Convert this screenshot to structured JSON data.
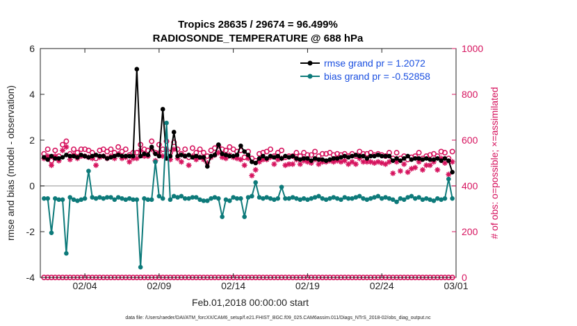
{
  "chart_data": {
    "type": "line",
    "title": "Tropics 28635 / 29674 = 96.499%",
    "subtitle": "RADIOSONDE_TEMPERATURE @ 688 hPa",
    "xlabel": "Feb.01,2018 00:00:00 start",
    "ylabel": "rmse and bias (model - observation)",
    "y2label": "# of obs: o=possible; ×=assimilated",
    "footnote": "data file: /Users/raeder/DAI/ATM_forcXX/CAM6_setup/f.e21.FHIST_BGC.f09_025.CAM6assim.011/Diags_NTrS_2018-02/obs_diag_output.nc",
    "xlim": [
      0,
      28
    ],
    "ylim": [
      -4,
      6
    ],
    "y2lim": [
      0,
      1000
    ],
    "x_ticks": [
      3,
      8,
      13,
      18,
      23,
      28
    ],
    "x_tick_labels": [
      "02/04",
      "02/09",
      "02/14",
      "02/19",
      "02/24",
      "03/01"
    ],
    "y_ticks": [
      -4,
      -2,
      0,
      2,
      4,
      6
    ],
    "y_tick_labels": [
      "-4",
      "-2",
      "0",
      "2",
      "4",
      "6"
    ],
    "y2_ticks": [
      0,
      200,
      400,
      600,
      800,
      1000
    ],
    "y2_tick_labels": [
      "0",
      "200",
      "400",
      "600",
      "800",
      "1000"
    ],
    "zero_line": 0,
    "legend_position": "top-right",
    "x": [
      0.25,
      0.5,
      0.75,
      1.0,
      1.25,
      1.5,
      1.75,
      2.0,
      2.25,
      2.5,
      2.75,
      3.0,
      3.25,
      3.5,
      3.75,
      4.0,
      4.25,
      4.5,
      4.75,
      5.0,
      5.25,
      5.5,
      5.75,
      6.0,
      6.25,
      6.5,
      6.75,
      7.0,
      7.25,
      7.5,
      7.75,
      8.0,
      8.25,
      8.5,
      8.75,
      9.0,
      9.25,
      9.5,
      9.75,
      10.0,
      10.25,
      10.5,
      10.75,
      11.0,
      11.25,
      11.5,
      11.75,
      12.0,
      12.25,
      12.5,
      12.75,
      13.0,
      13.25,
      13.5,
      13.75,
      14.0,
      14.25,
      14.5,
      14.75,
      15.0,
      15.25,
      15.5,
      15.75,
      16.0,
      16.25,
      16.5,
      16.75,
      17.0,
      17.25,
      17.5,
      17.75,
      18.0,
      18.25,
      18.5,
      18.75,
      19.0,
      19.25,
      19.5,
      19.75,
      20.0,
      20.25,
      20.5,
      20.75,
      21.0,
      21.25,
      21.5,
      21.75,
      22.0,
      22.25,
      22.5,
      22.75,
      23.0,
      23.25,
      23.5,
      23.75,
      24.0,
      24.25,
      24.5,
      24.75,
      25.0,
      25.25,
      25.5,
      25.75,
      26.0,
      26.25,
      26.5,
      26.75,
      27.0,
      27.25,
      27.5,
      27.75
    ],
    "series": [
      {
        "name": "rmse grand pr = 1.2072",
        "axis": "left",
        "color": "#000000",
        "values": [
          1.25,
          1.15,
          1.3,
          1.2,
          1.2,
          1.25,
          1.35,
          1.3,
          1.3,
          1.25,
          1.35,
          1.3,
          1.25,
          1.3,
          1.35,
          1.3,
          1.3,
          1.2,
          1.25,
          1.3,
          1.35,
          1.3,
          1.3,
          1.3,
          1.3,
          5.1,
          1.3,
          1.4,
          1.35,
          1.7,
          1.4,
          1.3,
          3.35,
          1.2,
          1.3,
          2.35,
          1.3,
          1.35,
          1.3,
          1.35,
          1.25,
          1.3,
          1.25,
          1.25,
          0.85,
          1.3,
          1.35,
          1.8,
          1.4,
          1.35,
          1.3,
          1.3,
          1.35,
          1.75,
          1.5,
          1.35,
          1.05,
          1.0,
          1.2,
          1.3,
          1.2,
          1.3,
          1.25,
          1.3,
          1.2,
          1.3,
          1.25,
          1.3,
          1.2,
          1.15,
          1.2,
          1.2,
          1.1,
          1.2,
          1.15,
          1.15,
          1.1,
          1.15,
          1.2,
          1.2,
          1.25,
          1.3,
          1.25,
          1.3,
          1.35,
          1.3,
          1.3,
          1.2,
          1.3,
          1.3,
          1.35,
          1.3,
          1.3,
          1.3,
          1.1,
          1.2,
          1.1,
          1.2,
          1.3,
          1.15,
          1.2,
          1.2,
          1.15,
          1.2,
          1.15,
          1.15,
          1.2,
          1.1,
          1.2,
          1.1,
          0.6
        ]
      },
      {
        "name": "bias grand pr = -0.52858",
        "axis": "left",
        "color": "#0d7a7a",
        "values": [
          -0.55,
          -0.55,
          -2.05,
          -0.55,
          -0.6,
          -0.6,
          -2.95,
          -0.5,
          -0.6,
          -0.65,
          -0.6,
          -0.55,
          0.65,
          -0.5,
          -0.55,
          -0.5,
          -0.55,
          -0.5,
          -0.5,
          -0.6,
          -0.5,
          -0.55,
          -0.6,
          -0.55,
          -0.6,
          -0.6,
          -3.55,
          -0.55,
          -0.6,
          -0.6,
          1.05,
          -0.45,
          -0.55,
          2.75,
          -0.6,
          -0.45,
          -0.5,
          -0.45,
          -0.55,
          -0.55,
          -0.5,
          -0.5,
          -0.6,
          -0.65,
          -0.65,
          -0.55,
          -0.5,
          -0.55,
          -1.35,
          -0.6,
          -0.65,
          -0.5,
          -0.55,
          -0.55,
          -1.35,
          -0.5,
          -0.45,
          0.15,
          -0.5,
          -0.55,
          -0.5,
          -0.55,
          -0.6,
          -0.55,
          -0.05,
          -0.55,
          -0.55,
          -0.5,
          -0.55,
          -0.6,
          -0.55,
          -0.6,
          -0.55,
          -0.5,
          -0.45,
          -0.55,
          -0.6,
          -0.55,
          -0.5,
          -0.55,
          -0.6,
          -0.5,
          -0.55,
          -0.55,
          -0.5,
          -0.45,
          -0.55,
          -0.6,
          -0.55,
          -0.5,
          -0.45,
          -0.55,
          -0.5,
          -0.55,
          -0.6,
          -0.7,
          -0.55,
          -0.6,
          -0.5,
          -0.45,
          -0.55,
          -0.5,
          -0.6,
          -0.55,
          -0.6,
          -0.65,
          -0.55,
          -0.6,
          -0.55,
          0.3,
          -0.55
        ]
      },
      {
        "name": "possible obs",
        "axis": "right",
        "color": "#d6135e",
        "marker": "o",
        "values": [
          540,
          560,
          510,
          555,
          530,
          580,
          595,
          540,
          560,
          545,
          560,
          560,
          555,
          545,
          520,
          555,
          560,
          550,
          560,
          545,
          570,
          550,
          560,
          535,
          545,
          545,
          580,
          560,
          555,
          595,
          545,
          580,
          560,
          595,
          545,
          590,
          560,
          540,
          560,
          525,
          565,
          545,
          560,
          545,
          530,
          555,
          565,
          575,
          560,
          555,
          570,
          560,
          550,
          555,
          525,
          550,
          520,
          510,
          540,
          545,
          550,
          560,
          530,
          545,
          555,
          525,
          530,
          530,
          545,
          530,
          545,
          535,
          535,
          550,
          530,
          540,
          540,
          545,
          535,
          540,
          535,
          540,
          530,
          540,
          530,
          550,
          540,
          540,
          545,
          535,
          540,
          535,
          530,
          545,
          520,
          545,
          520,
          530,
          515,
          525,
          530,
          545,
          520,
          530,
          535,
          540,
          530,
          550,
          545,
          520,
          550
        ]
      },
      {
        "name": "assimilated obs",
        "axis": "right",
        "color": "#d6135e",
        "marker": "x",
        "values": [
          520,
          530,
          490,
          530,
          510,
          555,
          570,
          515,
          535,
          520,
          530,
          530,
          525,
          520,
          490,
          525,
          530,
          520,
          530,
          520,
          540,
          520,
          525,
          505,
          520,
          520,
          555,
          530,
          530,
          560,
          510,
          545,
          530,
          560,
          515,
          560,
          520,
          505,
          530,
          490,
          530,
          515,
          525,
          515,
          500,
          525,
          535,
          545,
          525,
          520,
          535,
          525,
          520,
          515,
          490,
          520,
          445,
          470,
          505,
          515,
          515,
          525,
          495,
          515,
          520,
          490,
          495,
          495,
          515,
          495,
          510,
          505,
          500,
          515,
          495,
          505,
          505,
          510,
          505,
          510,
          505,
          510,
          495,
          505,
          495,
          520,
          505,
          505,
          505,
          500,
          505,
          500,
          495,
          505,
          455,
          505,
          465,
          495,
          460,
          475,
          480,
          505,
          470,
          490,
          490,
          505,
          470,
          520,
          500,
          450,
          505
        ]
      },
      {
        "name": "possible obs (bottom)",
        "axis": "left",
        "color": "#d6135e",
        "marker": "o",
        "values": [
          -4,
          -4,
          -4,
          -4,
          -4,
          -4,
          -4,
          -4,
          -4,
          -4,
          -4,
          -4,
          -4,
          -4,
          -4,
          -4,
          -4,
          -4,
          -4,
          -4,
          -4,
          -4,
          -4,
          -4,
          -4,
          -4,
          -4,
          -4,
          -4,
          -4,
          -4,
          -4,
          -4,
          -4,
          -4,
          -4,
          -4,
          -4,
          -4,
          -4,
          -4,
          -4,
          -4,
          -4,
          -4,
          -4,
          -4,
          -4,
          -4,
          -4,
          -4,
          -4,
          -4,
          -4,
          -4,
          -4,
          -4,
          -4,
          -4,
          -4,
          -4,
          -4,
          -4,
          -4,
          -4,
          -4,
          -4,
          -4,
          -4,
          -4,
          -4,
          -4,
          -4,
          -4,
          -4,
          -4,
          -4,
          -4,
          -4,
          -4,
          -4,
          -4,
          -4,
          -4,
          -4,
          -4,
          -4,
          -4,
          -4,
          -4,
          -4,
          -4,
          -4,
          -4,
          -4,
          -4,
          -4,
          -4,
          -4,
          -4,
          -4,
          -4,
          -4,
          -4,
          -4,
          -4,
          -4,
          -4,
          -4,
          -4,
          -4
        ]
      }
    ]
  }
}
